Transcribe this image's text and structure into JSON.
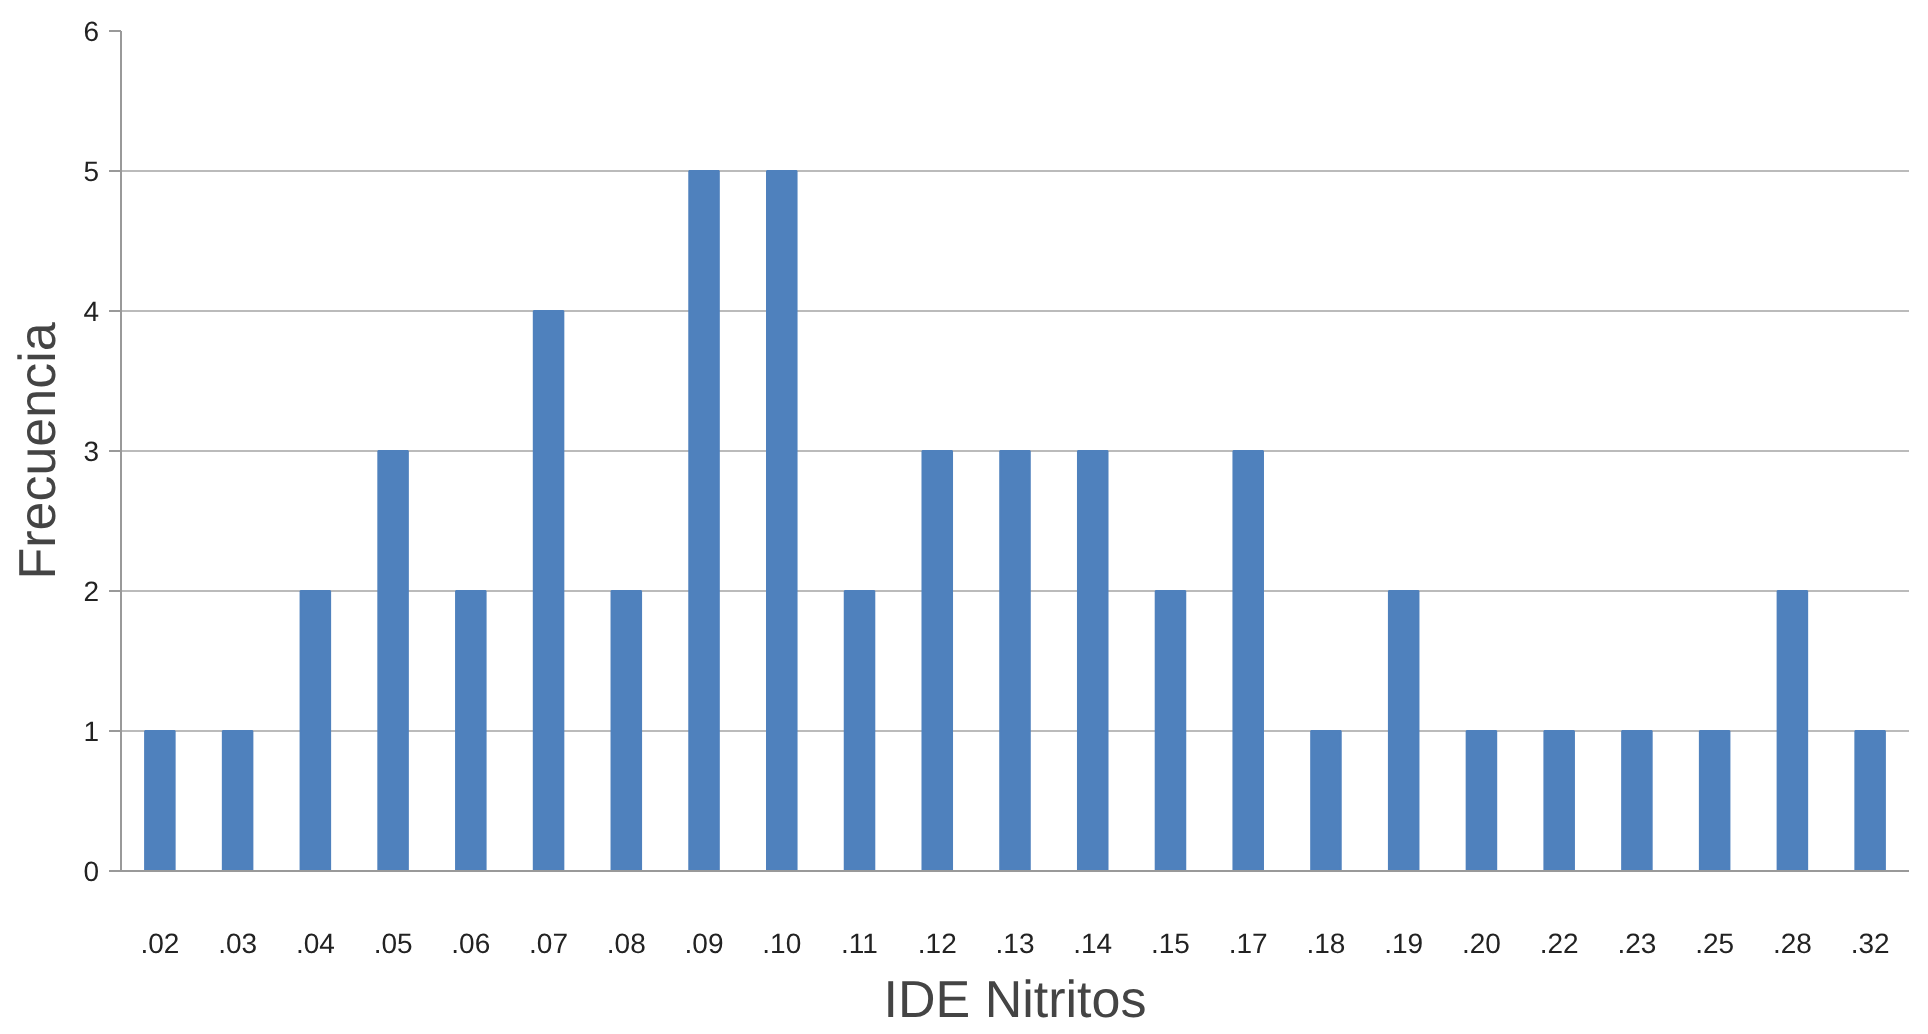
{
  "chart_data": {
    "type": "bar",
    "xlabel": "IDE Nitritos",
    "ylabel": "Frecuencia",
    "categories": [
      ".02",
      ".03",
      ".04",
      ".05",
      ".06",
      ".07",
      ".08",
      ".09",
      ".10",
      ".11",
      ".12",
      ".13",
      ".14",
      ".15",
      ".17",
      ".18",
      ".19",
      ".20",
      ".22",
      ".23",
      ".25",
      ".28",
      ".32"
    ],
    "values": [
      1,
      1,
      2,
      3,
      2,
      4,
      2,
      5,
      5,
      2,
      3,
      3,
      3,
      2,
      3,
      1,
      2,
      1,
      1,
      1,
      1,
      2,
      1
    ],
    "color": "#4f81bd",
    "ylim": [
      0,
      6
    ],
    "yticks": [
      0,
      1,
      2,
      3,
      4,
      5,
      6
    ],
    "grid": "y"
  }
}
